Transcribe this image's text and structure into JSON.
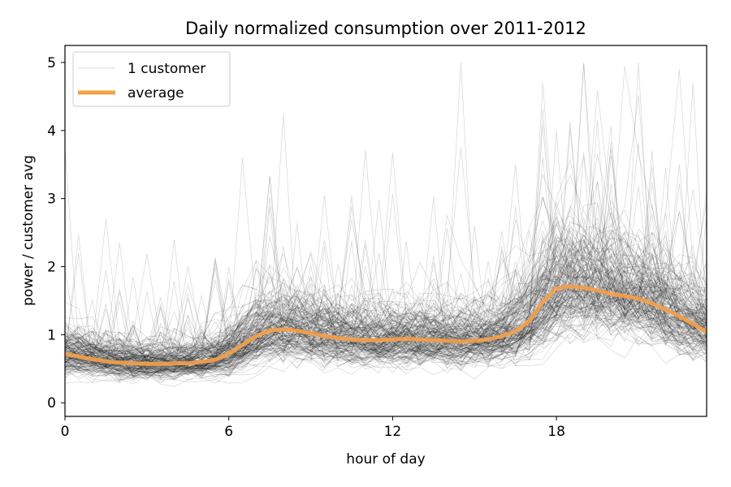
{
  "chart_data": {
    "type": "line",
    "title": "Daily normalized consumption over 2011-2012",
    "xlabel": "hour of day",
    "ylabel": "power / customer avg",
    "xlim": [
      0,
      23.5
    ],
    "ylim": [
      -0.2,
      5.25
    ],
    "xticks": [
      0,
      6,
      12,
      18
    ],
    "yticks": [
      0,
      1,
      2,
      3,
      4,
      5
    ],
    "grid": false,
    "legend": {
      "placement": "upper-left",
      "entries": [
        "1 customer",
        "average"
      ]
    },
    "colors": {
      "customer": "#000000",
      "average": "#f5a04a"
    },
    "x": [
      0,
      0.5,
      1,
      1.5,
      2,
      2.5,
      3,
      3.5,
      4,
      4.5,
      5,
      5.5,
      6,
      6.5,
      7,
      7.5,
      8,
      8.5,
      9,
      9.5,
      10,
      10.5,
      11,
      11.5,
      12,
      12.5,
      13,
      13.5,
      14,
      14.5,
      15,
      15.5,
      16,
      16.5,
      17,
      17.5,
      18,
      18.5,
      19,
      19.5,
      20,
      20.5,
      21,
      21.5,
      22,
      22.5,
      23,
      23.5
    ],
    "series": [
      {
        "name": "average",
        "values": [
          0.72,
          0.68,
          0.64,
          0.61,
          0.59,
          0.58,
          0.57,
          0.57,
          0.58,
          0.58,
          0.6,
          0.63,
          0.72,
          0.85,
          0.98,
          1.06,
          1.08,
          1.06,
          1.02,
          0.98,
          0.95,
          0.93,
          0.92,
          0.92,
          0.93,
          0.94,
          0.93,
          0.92,
          0.91,
          0.9,
          0.91,
          0.93,
          0.98,
          1.05,
          1.2,
          1.48,
          1.68,
          1.71,
          1.69,
          1.65,
          1.6,
          1.57,
          1.53,
          1.46,
          1.37,
          1.27,
          1.16,
          1.04
        ]
      }
    ]
  }
}
